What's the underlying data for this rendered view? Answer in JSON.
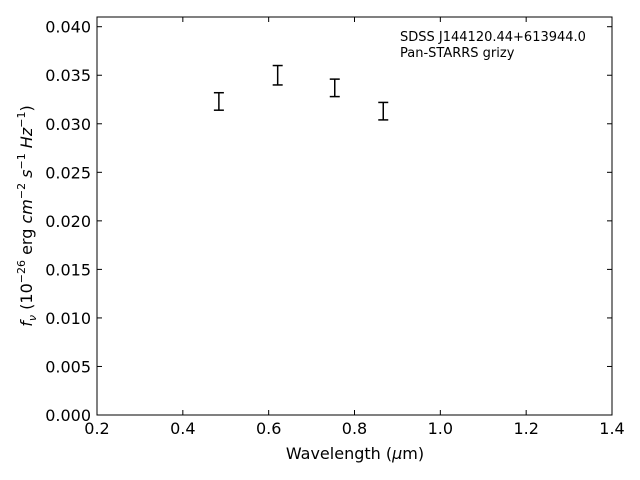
{
  "chart_data": {
    "type": "scatter",
    "title": "",
    "annotation_lines": [
      "SDSS J144120.44+613944.0",
      "Pan-STARRS grizy"
    ],
    "xlabel": {
      "pre": "Wavelength (",
      "mu": "μ",
      "post": "m)"
    },
    "ylabel": {
      "f": "f",
      "nu": "ν",
      "paren_open": " (10",
      "exp1": "−26",
      "erg": " erg ",
      "cm": "cm",
      "exp2": "−2",
      "s": " s",
      "exp3": "−1",
      "hz": " Hz",
      "exp4": "−1",
      "paren_close": ")"
    },
    "xlim": [
      0.2,
      1.4
    ],
    "ylim": [
      0.0,
      0.041
    ],
    "xticks": [
      0.2,
      0.4,
      0.6,
      0.8,
      1.0,
      1.2,
      1.4
    ],
    "yticks": [
      0.0,
      0.005,
      0.01,
      0.015,
      0.02,
      0.025,
      0.03,
      0.035,
      0.04
    ],
    "xtick_labels": [
      "0.2",
      "0.4",
      "0.6",
      "0.8",
      "1.0",
      "1.2",
      "1.4"
    ],
    "ytick_labels": [
      "0.000",
      "0.005",
      "0.010",
      "0.015",
      "0.020",
      "0.025",
      "0.030",
      "0.035",
      "0.040"
    ],
    "grid": false,
    "points": [
      {
        "x": 0.484,
        "y": 0.0323,
        "yerr": 0.0009
      },
      {
        "x": 0.621,
        "y": 0.035,
        "yerr": 0.001
      },
      {
        "x": 0.754,
        "y": 0.0337,
        "yerr": 0.0009
      },
      {
        "x": 0.867,
        "y": 0.0313,
        "yerr": 0.0009
      }
    ],
    "colors": {
      "errorbar": "#000000",
      "axes": "#000000",
      "background": "#ffffff"
    }
  }
}
